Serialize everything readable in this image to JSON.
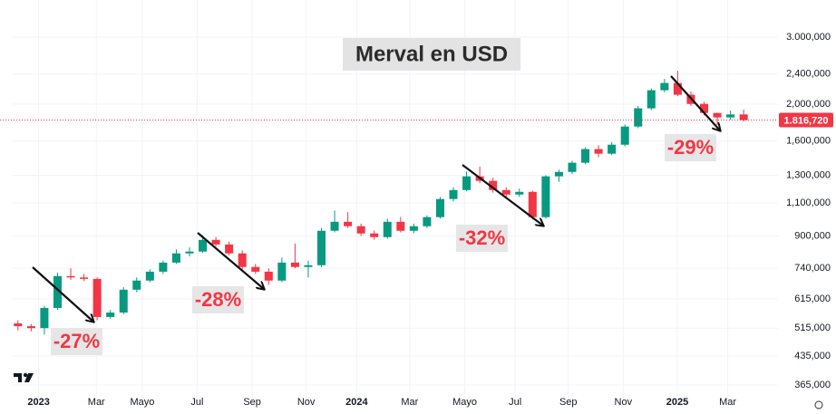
{
  "chart_data": {
    "type": "candlestick",
    "title": "Merval en USD",
    "log_scale": true,
    "grid": true,
    "up_color": "#089981",
    "down_color": "#f23645",
    "open": [
      530000,
      521000,
      515000,
      582000,
      706000,
      700000,
      694000,
      551000,
      566000,
      650000,
      687000,
      725000,
      766000,
      810000,
      819000,
      879000,
      855000,
      810000,
      746000,
      725000,
      687000,
      766000,
      746000,
      754000,
      929000,
      981000,
      955000,
      914000,
      894000,
      981000,
      929000,
      955000,
      1009000,
      1126000,
      1189000,
      1292000,
      1257000,
      1189000,
      1157000,
      1176000,
      1009000,
      1292000,
      1327000,
      1403000,
      1524000,
      1482000,
      1565000,
      1747000,
      1951000,
      2177000,
      2275000,
      2118000,
      2004000,
      1897000,
      1846000,
      1880000
    ],
    "high": [
      540000,
      528000,
      590000,
      720000,
      740000,
      715000,
      700000,
      575000,
      660000,
      700000,
      735000,
      775000,
      830000,
      840000,
      905000,
      895000,
      870000,
      825000,
      760000,
      740000,
      790000,
      860000,
      775000,
      945000,
      1050000,
      1040000,
      970000,
      930000,
      1000000,
      1010000,
      970000,
      1020000,
      1140000,
      1210000,
      1330000,
      1370000,
      1280000,
      1210000,
      1200000,
      1185000,
      1300000,
      1345000,
      1420000,
      1540000,
      1560000,
      1590000,
      1770000,
      1980000,
      2200000,
      2330000,
      2450000,
      2160000,
      2030000,
      1900000,
      1925000,
      1935000
    ],
    "low": [
      508000,
      505000,
      495000,
      575000,
      690000,
      685000,
      540000,
      545000,
      560000,
      640000,
      680000,
      715000,
      760000,
      795000,
      812000,
      845000,
      800000,
      735000,
      715000,
      670000,
      680000,
      740000,
      700000,
      745000,
      920000,
      945000,
      900000,
      880000,
      885000,
      920000,
      915000,
      945000,
      1000000,
      1110000,
      1180000,
      1240000,
      1170000,
      1140000,
      1140000,
      995000,
      1000000,
      1250000,
      1310000,
      1390000,
      1450000,
      1470000,
      1550000,
      1730000,
      1930000,
      2150000,
      2100000,
      1980000,
      1870000,
      1760000,
      1820000,
      1800000
    ],
    "close": [
      521000,
      515000,
      582000,
      706000,
      700000,
      694000,
      551000,
      566000,
      650000,
      687000,
      725000,
      766000,
      810000,
      819000,
      879000,
      855000,
      810000,
      746000,
      725000,
      687000,
      766000,
      746000,
      754000,
      929000,
      981000,
      955000,
      914000,
      894000,
      981000,
      929000,
      955000,
      1009000,
      1126000,
      1189000,
      1292000,
      1257000,
      1189000,
      1157000,
      1176000,
      1009000,
      1292000,
      1327000,
      1403000,
      1524000,
      1482000,
      1565000,
      1747000,
      1951000,
      2177000,
      2275000,
      2118000,
      2004000,
      1897000,
      1846000,
      1880000,
      1816720
    ],
    "xlim": [
      -0.4,
      57.6
    ],
    "xticks": [
      {
        "value": 1.57,
        "label": "2023"
      },
      {
        "value": 5.94,
        "label": "Mar"
      },
      {
        "value": 9.42,
        "label": "Mayo"
      },
      {
        "value": 13.58,
        "label": "Jul"
      },
      {
        "value": 17.75,
        "label": "Sep"
      },
      {
        "value": 21.84,
        "label": "Nov"
      },
      {
        "value": 25.67,
        "label": "2024"
      },
      {
        "value": 29.69,
        "label": "Mar"
      },
      {
        "value": 33.86,
        "label": "Mayo"
      },
      {
        "value": 37.68,
        "label": "Jul"
      },
      {
        "value": 41.71,
        "label": "Sep"
      },
      {
        "value": 45.87,
        "label": "Nov"
      },
      {
        "value": 49.97,
        "label": "2025"
      },
      {
        "value": 53.79,
        "label": "Mar"
      }
    ],
    "ylim": [
      336000,
      3190000
    ],
    "yticks": [
      {
        "value": 365000,
        "label": "365,000"
      },
      {
        "value": 435000,
        "label": "435,000"
      },
      {
        "value": 515000,
        "label": "515,000"
      },
      {
        "value": 615000,
        "label": "615,000"
      },
      {
        "value": 740000,
        "label": "740,000"
      },
      {
        "value": 900000,
        "label": "900,000"
      },
      {
        "value": 1100000,
        "label": "1,100,000"
      },
      {
        "value": 1300000,
        "label": "1,300,000"
      },
      {
        "value": 1600000,
        "label": "1,600,000"
      },
      {
        "value": 2000000,
        "label": "2,000,000"
      },
      {
        "value": 2400000,
        "label": "2,400,000"
      },
      {
        "value": 3000000,
        "label": "3.000,000"
      }
    ],
    "last_price": {
      "value": 1816720,
      "label": "1.816,720"
    },
    "annotations": [
      "-27%",
      "-28%",
      "-32%",
      "-29%"
    ]
  }
}
